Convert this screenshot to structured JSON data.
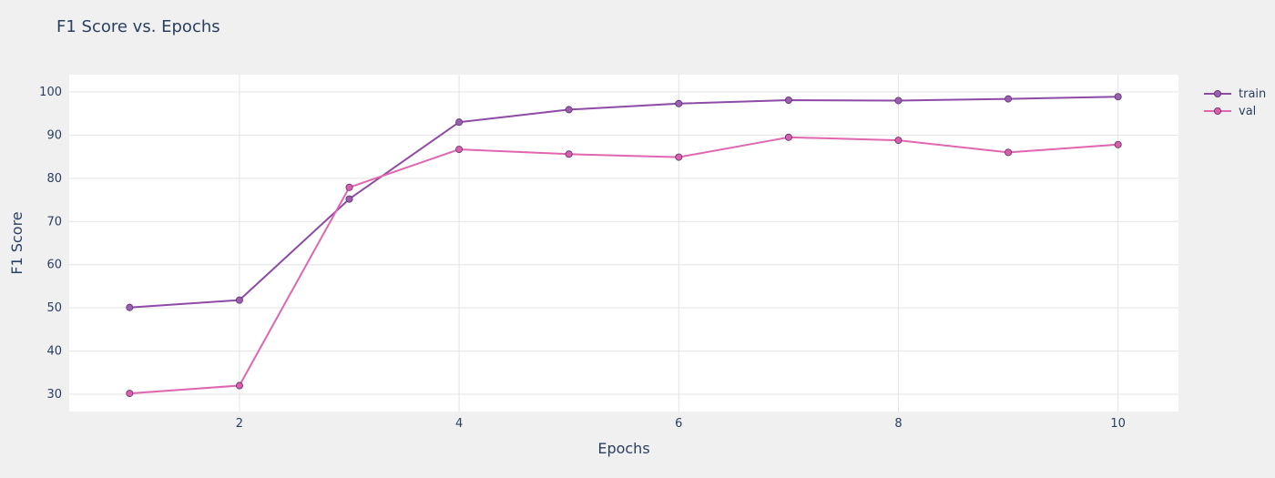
{
  "chart_data": {
    "type": "line",
    "title": "F1 Score vs. Epochs",
    "xlabel": "Epochs",
    "ylabel": "F1 Score",
    "xlim": [
      0.45,
      10.55
    ],
    "ylim": [
      26,
      104
    ],
    "x_ticks": [
      2,
      4,
      6,
      8,
      10
    ],
    "y_ticks": [
      30,
      40,
      50,
      60,
      70,
      80,
      90,
      100
    ],
    "grid": true,
    "legend_position": "top-right",
    "x": [
      1,
      2,
      3,
      4,
      5,
      6,
      7,
      8,
      9,
      10
    ],
    "series": [
      {
        "name": "train",
        "color": "#8e4ba6",
        "marker_color": "#9b5fb0",
        "values": [
          50.1,
          51.8,
          75.2,
          93.0,
          95.9,
          97.3,
          98.1,
          98.0,
          98.4,
          98.9
        ]
      },
      {
        "name": "val",
        "color": "#e066b0",
        "marker_color": "#d95fa8",
        "values": [
          30.2,
          32.0,
          77.9,
          86.7,
          85.6,
          84.9,
          89.5,
          88.8,
          86.0,
          87.8
        ]
      }
    ]
  }
}
